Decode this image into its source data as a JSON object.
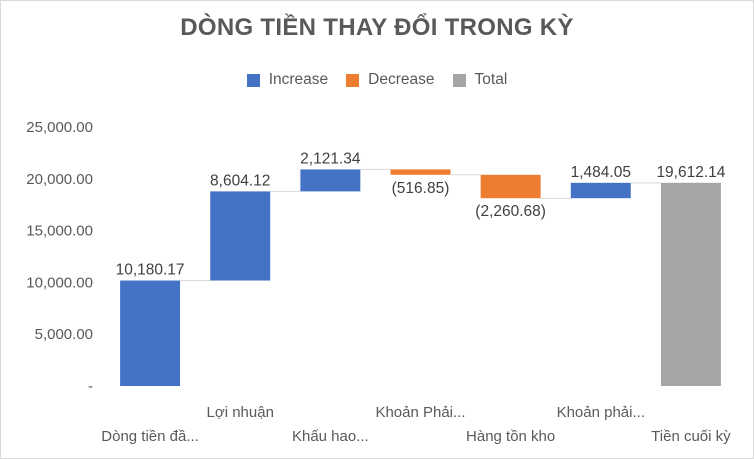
{
  "chart_data": {
    "type": "waterfall",
    "title": "DÒNG TIỀN THAY ĐỔI TRONG KỲ",
    "legend": {
      "placement": "top",
      "items": [
        {
          "label": "Increase",
          "color": "#4472c4"
        },
        {
          "label": "Decrease",
          "color": "#ed7d31"
        },
        {
          "label": "Total",
          "color": "#a5a5a5"
        }
      ]
    },
    "categories": [
      "Dòng tiền đầ...",
      "Lợi nhuận",
      "Khấu hao...",
      "Khoản Phải...",
      "Hàng tồn kho",
      "Khoản phải...",
      "Tiền cuối kỳ"
    ],
    "values": [
      10180.17,
      8604.12,
      2121.34,
      -516.85,
      -2260.68,
      1484.05,
      19612.14
    ],
    "data_labels": [
      "10,180.17",
      "8,604.12",
      "2,121.34",
      "(516.85)",
      "(2,260.68)",
      "1,484.05",
      "19,612.14"
    ],
    "kinds": [
      "increase",
      "increase",
      "increase",
      "decrease",
      "decrease",
      "increase",
      "total"
    ],
    "y_ticks": [
      "-",
      "5,000.00",
      "10,000.00",
      "15,000.00",
      "20,000.00",
      "25,000.00"
    ],
    "ylim": [
      0,
      25000
    ],
    "grid": false,
    "xlabel": "",
    "ylabel": ""
  }
}
